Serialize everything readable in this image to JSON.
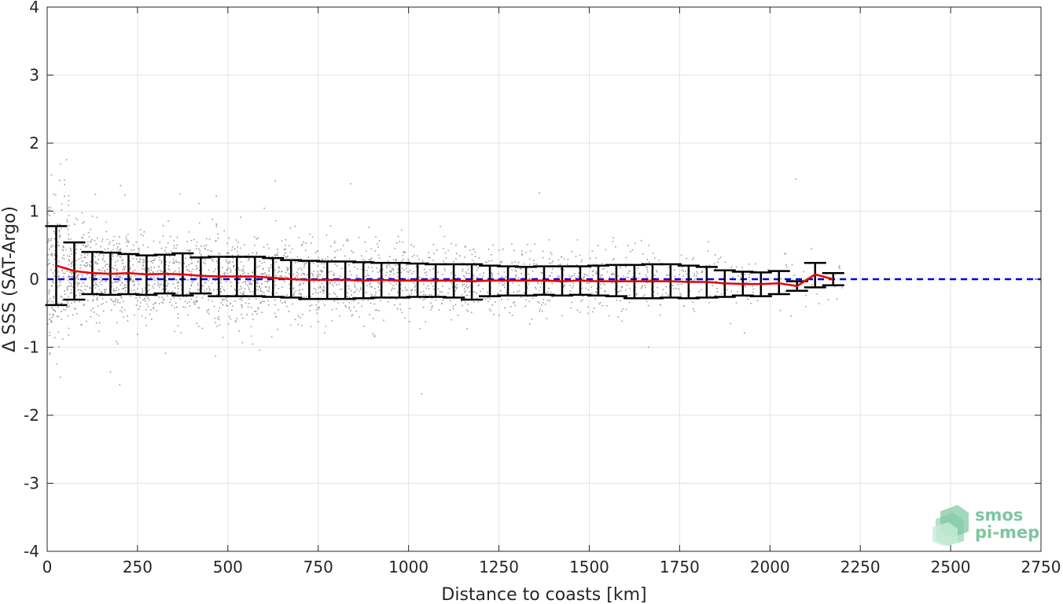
{
  "chart_data": {
    "type": "scatter",
    "title": "",
    "xlabel": "Distance to coasts [km]",
    "ylabel": "Δ SSS (SAT-Argo)",
    "xlim": [
      0,
      2750
    ],
    "ylim": [
      -4,
      4
    ],
    "x_ticks": [
      0,
      250,
      500,
      750,
      1000,
      1250,
      1500,
      1750,
      2000,
      2250,
      2500,
      2750
    ],
    "y_ticks": [
      -4,
      -3,
      -2,
      -1,
      0,
      1,
      2,
      3,
      4
    ],
    "x_tick_labels": [
      "0",
      "250",
      "500",
      "750",
      "1000",
      "1250",
      "1500",
      "1750",
      "2000",
      "2250",
      "2500",
      "2750"
    ],
    "y_tick_labels": [
      "-4",
      "-3",
      "-2",
      "-1",
      "0",
      "1",
      "2",
      "3",
      "4"
    ],
    "grid": true,
    "reference_line": {
      "y": 0,
      "style": "dashed",
      "color": "#0000ee"
    },
    "colors": {
      "scatter": "#8c8c8c",
      "mean_line": "#e60000",
      "error_bars": "#000000",
      "reference": "#0000ee"
    },
    "bins": [
      {
        "x": 25,
        "mean": 0.2,
        "lower": -0.38,
        "upper": 0.78
      },
      {
        "x": 75,
        "mean": 0.12,
        "lower": -0.3,
        "upper": 0.54
      },
      {
        "x": 125,
        "mean": 0.09,
        "lower": -0.22,
        "upper": 0.4
      },
      {
        "x": 175,
        "mean": 0.08,
        "lower": -0.23,
        "upper": 0.39
      },
      {
        "x": 225,
        "mean": 0.09,
        "lower": -0.22,
        "upper": 0.37
      },
      {
        "x": 275,
        "mean": 0.07,
        "lower": -0.23,
        "upper": 0.35
      },
      {
        "x": 325,
        "mean": 0.08,
        "lower": -0.21,
        "upper": 0.36
      },
      {
        "x": 375,
        "mean": 0.07,
        "lower": -0.24,
        "upper": 0.38
      },
      {
        "x": 425,
        "mean": 0.05,
        "lower": -0.21,
        "upper": 0.32
      },
      {
        "x": 475,
        "mean": 0.04,
        "lower": -0.25,
        "upper": 0.33
      },
      {
        "x": 525,
        "mean": 0.04,
        "lower": -0.25,
        "upper": 0.33
      },
      {
        "x": 575,
        "mean": 0.04,
        "lower": -0.25,
        "upper": 0.33
      },
      {
        "x": 625,
        "mean": 0.02,
        "lower": -0.26,
        "upper": 0.31
      },
      {
        "x": 675,
        "mean": 0.0,
        "lower": -0.27,
        "upper": 0.28
      },
      {
        "x": 725,
        "mean": -0.01,
        "lower": -0.29,
        "upper": 0.27
      },
      {
        "x": 775,
        "mean": -0.01,
        "lower": -0.29,
        "upper": 0.26
      },
      {
        "x": 825,
        "mean": -0.01,
        "lower": -0.29,
        "upper": 0.26
      },
      {
        "x": 875,
        "mean": -0.02,
        "lower": -0.28,
        "upper": 0.25
      },
      {
        "x": 925,
        "mean": -0.01,
        "lower": -0.27,
        "upper": 0.24
      },
      {
        "x": 975,
        "mean": -0.02,
        "lower": -0.27,
        "upper": 0.24
      },
      {
        "x": 1025,
        "mean": -0.02,
        "lower": -0.26,
        "upper": 0.23
      },
      {
        "x": 1075,
        "mean": -0.02,
        "lower": -0.26,
        "upper": 0.22
      },
      {
        "x": 1125,
        "mean": -0.02,
        "lower": -0.27,
        "upper": 0.22
      },
      {
        "x": 1175,
        "mean": -0.03,
        "lower": -0.3,
        "upper": 0.22
      },
      {
        "x": 1225,
        "mean": -0.02,
        "lower": -0.25,
        "upper": 0.2
      },
      {
        "x": 1275,
        "mean": -0.02,
        "lower": -0.24,
        "upper": 0.19
      },
      {
        "x": 1325,
        "mean": -0.02,
        "lower": -0.24,
        "upper": 0.18
      },
      {
        "x": 1375,
        "mean": -0.02,
        "lower": -0.23,
        "upper": 0.19
      },
      {
        "x": 1425,
        "mean": -0.03,
        "lower": -0.24,
        "upper": 0.19
      },
      {
        "x": 1475,
        "mean": -0.02,
        "lower": -0.23,
        "upper": 0.19
      },
      {
        "x": 1525,
        "mean": -0.03,
        "lower": -0.24,
        "upper": 0.2
      },
      {
        "x": 1575,
        "mean": -0.03,
        "lower": -0.25,
        "upper": 0.21
      },
      {
        "x": 1625,
        "mean": -0.03,
        "lower": -0.28,
        "upper": 0.21
      },
      {
        "x": 1675,
        "mean": -0.03,
        "lower": -0.28,
        "upper": 0.22
      },
      {
        "x": 1725,
        "mean": -0.03,
        "lower": -0.27,
        "upper": 0.22
      },
      {
        "x": 1775,
        "mean": -0.04,
        "lower": -0.28,
        "upper": 0.2
      },
      {
        "x": 1825,
        "mean": -0.04,
        "lower": -0.27,
        "upper": 0.18
      },
      {
        "x": 1875,
        "mean": -0.06,
        "lower": -0.26,
        "upper": 0.13
      },
      {
        "x": 1925,
        "mean": -0.07,
        "lower": -0.24,
        "upper": 0.11
      },
      {
        "x": 1975,
        "mean": -0.07,
        "lower": -0.25,
        "upper": 0.1
      },
      {
        "x": 2025,
        "mean": -0.06,
        "lower": -0.22,
        "upper": 0.12
      },
      {
        "x": 2075,
        "mean": -0.1,
        "lower": -0.17,
        "upper": -0.03
      },
      {
        "x": 2125,
        "mean": 0.07,
        "lower": -0.12,
        "upper": 0.24
      },
      {
        "x": 2175,
        "mean": 0.0,
        "lower": -0.09,
        "upper": 0.09
      }
    ]
  },
  "logo": {
    "line1": "smos",
    "line2": "pi-mep"
  }
}
